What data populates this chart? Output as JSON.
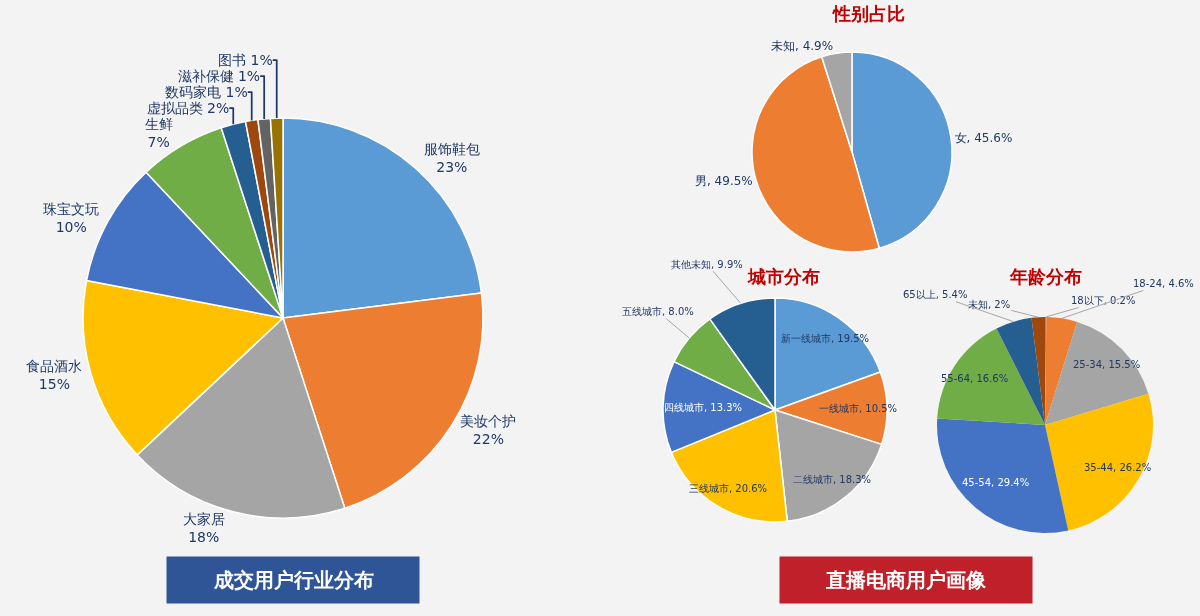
{
  "chart_data": [
    {
      "type": "pie",
      "title": "成交用户行业分布",
      "categories": [
        "服饰鞋包",
        "美妆个护",
        "大家居",
        "食品酒水",
        "珠宝文玩",
        "生鲜",
        "虚拟品类",
        "数码家电",
        "滋补保健",
        "图书"
      ],
      "values": [
        23,
        22,
        18,
        15,
        10,
        7,
        2,
        1,
        1,
        1
      ],
      "value_labels": [
        "23%",
        "22%",
        "18%",
        "15%",
        "10%",
        "7%",
        "2%",
        "1%",
        "1%",
        "1%"
      ],
      "colors": [
        "#5b9bd5",
        "#ed7d31",
        "#a5a5a5",
        "#ffc000",
        "#4472c4",
        "#70ad47",
        "#255e91",
        "#9e480e",
        "#636363",
        "#997300"
      ]
    },
    {
      "type": "pie",
      "title": "性别占比",
      "annotations": [
        "直播电商用户画像"
      ],
      "categories": [
        "女",
        "男",
        "未知"
      ],
      "values": [
        45.6,
        49.5,
        4.9
      ],
      "value_labels": [
        "45.6%",
        "49.5%",
        "4.9%"
      ],
      "colors": [
        "#5b9bd5",
        "#ed7d31",
        "#a5a5a5"
      ]
    },
    {
      "type": "pie",
      "title": "城市分布",
      "categories": [
        "新一线城市",
        "一线城市",
        "二线城市",
        "三线城市",
        "四线城市",
        "五线城市",
        "其他未知"
      ],
      "values": [
        19.5,
        10.5,
        18.3,
        20.6,
        13.3,
        8.0,
        9.9
      ],
      "value_labels": [
        "19.5%",
        "10.5%",
        "18.3%",
        "20.6%",
        "13.3%",
        "8.0%",
        "9.9%"
      ],
      "colors": [
        "#5b9bd5",
        "#ed7d31",
        "#a5a5a5",
        "#ffc000",
        "#4472c4",
        "#70ad47",
        "#255e91"
      ]
    },
    {
      "type": "pie",
      "title": "年龄分布",
      "categories": [
        "18以下",
        "18-24",
        "25-34",
        "35-44",
        "45-54",
        "55-64",
        "65以上",
        "未知"
      ],
      "values": [
        0.2,
        4.6,
        15.5,
        26.2,
        29.4,
        16.6,
        5.4,
        2
      ],
      "value_labels": [
        "0.2%",
        "4.6%",
        "15.5%",
        "26.2%",
        "29.4%",
        "16.6%",
        "5.4%",
        "2%"
      ],
      "colors": [
        "#5b9bd5",
        "#ed7d31",
        "#a5a5a5",
        "#ffc000",
        "#4472c4",
        "#70ad47",
        "#255e91",
        "#9e480e"
      ]
    }
  ]
}
